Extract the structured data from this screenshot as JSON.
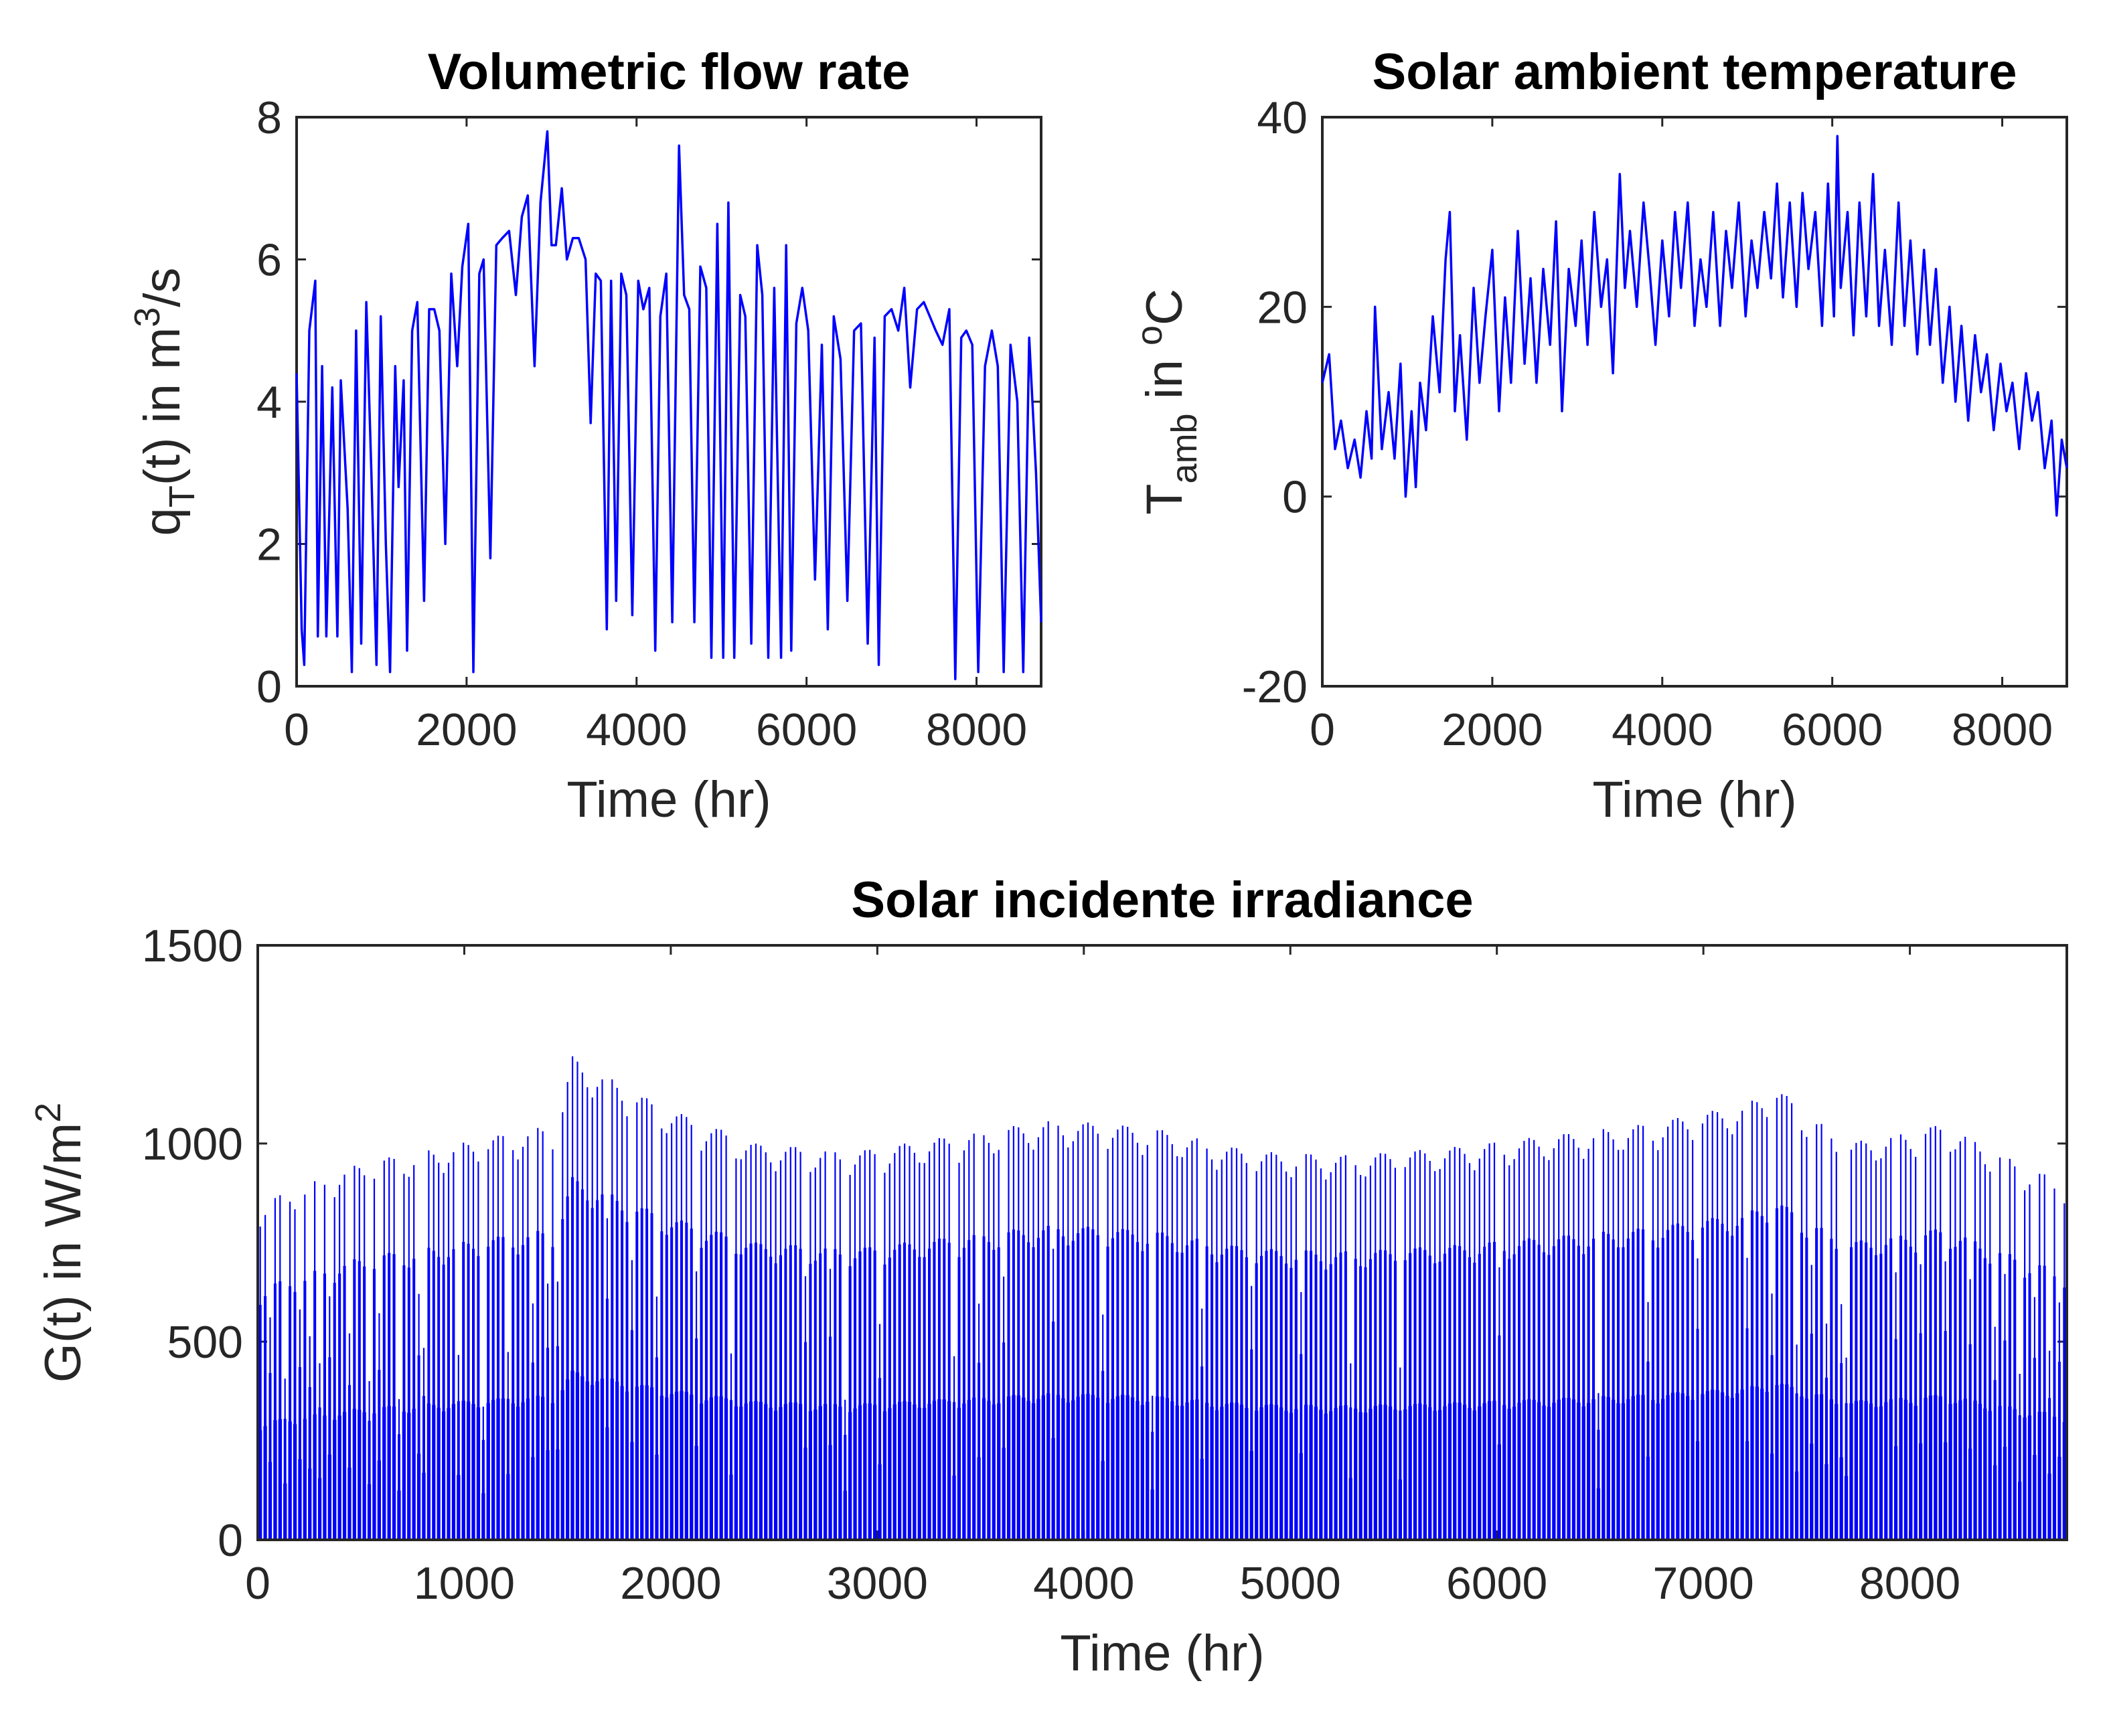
{
  "figure": {
    "background": "#ffffff",
    "line_color": "#0000ff",
    "axis_color": "#262626"
  },
  "chart_data": [
    {
      "id": "flow",
      "type": "line",
      "title": "Volumetric flow rate",
      "xlabel": "Time (hr)",
      "ylabel": {
        "base": "q",
        "sub": "T",
        "rest": "(t) in m",
        "sup": "3",
        "tail": "/s"
      },
      "xlim": [
        0,
        8760
      ],
      "ylim": [
        0,
        8
      ],
      "xticks": [
        0,
        2000,
        4000,
        6000,
        8000
      ],
      "yticks": [
        0,
        2,
        4,
        6,
        8
      ],
      "series": [
        {
          "name": "q_T(t)",
          "x": [
            0,
            60,
            90,
            150,
            220,
            250,
            300,
            350,
            420,
            480,
            520,
            600,
            650,
            700,
            760,
            820,
            880,
            940,
            990,
            1050,
            1100,
            1160,
            1200,
            1260,
            1300,
            1360,
            1420,
            1500,
            1560,
            1620,
            1680,
            1750,
            1820,
            1890,
            1950,
            2020,
            2080,
            2150,
            2200,
            2280,
            2350,
            2420,
            2500,
            2580,
            2650,
            2720,
            2800,
            2870,
            2950,
            3000,
            3050,
            3120,
            3180,
            3250,
            3320,
            3400,
            3460,
            3520,
            3580,
            3650,
            3700,
            3760,
            3820,
            3880,
            3950,
            4020,
            4080,
            4150,
            4220,
            4280,
            4350,
            4420,
            4500,
            4560,
            4620,
            4680,
            4750,
            4820,
            4880,
            4950,
            5020,
            5080,
            5150,
            5220,
            5280,
            5350,
            5420,
            5480,
            5550,
            5620,
            5700,
            5760,
            5820,
            5880,
            5950,
            6020,
            6100,
            6180,
            6250,
            6320,
            6400,
            6480,
            6560,
            6640,
            6720,
            6800,
            6850,
            6920,
            7000,
            7080,
            7150,
            7220,
            7300,
            7380,
            7450,
            7520,
            7600,
            7680,
            7750,
            7820,
            7880,
            7950,
            8020,
            8100,
            8180,
            8250,
            8320,
            8400,
            8480,
            8550,
            8620,
            8700,
            8760
          ],
          "y": [
            4.4,
            0.8,
            0.3,
            5.0,
            5.7,
            0.7,
            4.5,
            0.7,
            4.2,
            0.7,
            4.3,
            2.5,
            0.2,
            5.0,
            0.6,
            5.4,
            3.0,
            0.3,
            5.2,
            2.0,
            0.2,
            4.5,
            2.8,
            4.3,
            0.5,
            5.0,
            5.4,
            1.2,
            5.3,
            5.3,
            5.0,
            2.0,
            5.8,
            4.5,
            5.9,
            6.5,
            0.2,
            5.8,
            6.0,
            1.8,
            6.2,
            6.3,
            6.4,
            5.5,
            6.6,
            6.9,
            4.5,
            6.8,
            7.8,
            6.2,
            6.2,
            7.0,
            6.0,
            6.3,
            6.3,
            6.0,
            3.7,
            5.8,
            5.7,
            0.8,
            5.7,
            1.2,
            5.8,
            5.5,
            1.0,
            5.7,
            5.3,
            5.6,
            0.5,
            5.2,
            5.8,
            0.9,
            7.6,
            5.5,
            5.3,
            0.9,
            5.9,
            5.6,
            0.4,
            6.5,
            0.4,
            6.8,
            0.4,
            5.5,
            5.2,
            0.6,
            6.2,
            5.5,
            0.4,
            5.6,
            0.4,
            6.2,
            0.5,
            5.1,
            5.6,
            5.0,
            1.5,
            4.8,
            0.8,
            5.2,
            4.6,
            1.2,
            5.0,
            5.1,
            0.6,
            4.9,
            0.3,
            5.2,
            5.3,
            5.0,
            5.6,
            4.2,
            5.3,
            5.4,
            5.2,
            5.0,
            4.8,
            5.3,
            0.1,
            4.9,
            5.0,
            4.8,
            0.2,
            4.5,
            5.0,
            4.5,
            0.2,
            4.8,
            4.0,
            0.2,
            4.9,
            3.0,
            0.9
          ]
        }
      ]
    },
    {
      "id": "temp",
      "type": "line",
      "title": "Solar ambient temperature",
      "xlabel": "Time (hr)",
      "ylabel": {
        "base": "T",
        "sub": "amb",
        "rest": " in ",
        "sup": "o",
        "tail": "C"
      },
      "xlim": [
        0,
        8760
      ],
      "ylim": [
        -20,
        40
      ],
      "xticks": [
        0,
        2000,
        4000,
        6000,
        8000
      ],
      "yticks": [
        -20,
        0,
        20,
        40
      ],
      "series": [
        {
          "name": "T_amb",
          "x": [
            0,
            80,
            150,
            220,
            300,
            380,
            450,
            520,
            580,
            620,
            700,
            780,
            850,
            920,
            980,
            1050,
            1100,
            1150,
            1220,
            1300,
            1380,
            1450,
            1500,
            1560,
            1620,
            1700,
            1780,
            1850,
            1920,
            2000,
            2080,
            2150,
            2220,
            2300,
            2380,
            2450,
            2520,
            2600,
            2680,
            2750,
            2820,
            2900,
            2980,
            3050,
            3120,
            3200,
            3280,
            3350,
            3420,
            3500,
            3560,
            3620,
            3700,
            3780,
            3850,
            3920,
            4000,
            4080,
            4150,
            4220,
            4300,
            4380,
            4450,
            4520,
            4600,
            4680,
            4750,
            4820,
            4900,
            4980,
            5050,
            5120,
            5200,
            5280,
            5350,
            5420,
            5500,
            5580,
            5650,
            5720,
            5800,
            5880,
            5950,
            6020,
            6060,
            6100,
            6180,
            6250,
            6320,
            6400,
            6480,
            6550,
            6620,
            6700,
            6780,
            6850,
            6920,
            7000,
            7080,
            7150,
            7220,
            7300,
            7380,
            7450,
            7520,
            7600,
            7680,
            7750,
            7820,
            7900,
            7980,
            8050,
            8120,
            8200,
            8280,
            8350,
            8420,
            8500,
            8580,
            8640,
            8700,
            8760
          ],
          "y": [
            12,
            15,
            5,
            8,
            3,
            6,
            2,
            9,
            4,
            20,
            5,
            11,
            4,
            14,
            0,
            9,
            1,
            12,
            7,
            19,
            11,
            25,
            30,
            9,
            17,
            6,
            22,
            12,
            19,
            26,
            9,
            21,
            12,
            28,
            14,
            23,
            12,
            24,
            16,
            29,
            9,
            24,
            18,
            27,
            16,
            30,
            20,
            25,
            13,
            34,
            22,
            28,
            20,
            31,
            24,
            16,
            27,
            19,
            30,
            22,
            31,
            18,
            25,
            20,
            30,
            18,
            28,
            22,
            31,
            19,
            27,
            22,
            30,
            23,
            33,
            21,
            31,
            20,
            32,
            24,
            30,
            18,
            33,
            19,
            38,
            22,
            30,
            17,
            31,
            19,
            34,
            18,
            26,
            16,
            31,
            18,
            27,
            15,
            26,
            16,
            24,
            12,
            20,
            10,
            18,
            8,
            17,
            11,
            15,
            7,
            14,
            9,
            12,
            5,
            13,
            8,
            11,
            3,
            8,
            -2,
            6,
            3
          ]
        }
      ]
    },
    {
      "id": "irradiance",
      "type": "bar",
      "title": "Solar incidente irradiance",
      "xlabel": "Time (hr)",
      "ylabel": {
        "base": "G(t) in W/m",
        "sup": "2"
      },
      "xlim": [
        0,
        8760
      ],
      "ylim": [
        0,
        1500
      ],
      "xticks": [
        0,
        1000,
        2000,
        3000,
        4000,
        5000,
        6000,
        7000,
        8000
      ],
      "yticks": [
        0,
        500,
        1000,
        1500
      ],
      "description": "Hourly irradiance over one year, one peak per day (365 days)",
      "peak_envelope": {
        "day": [
          0,
          20,
          40,
          60,
          63,
          80,
          100,
          120,
          140,
          160,
          180,
          200,
          220,
          240,
          260,
          280,
          300,
          305,
          320,
          340,
          355,
          364
        ],
        "peak": [
          850,
          950,
          1000,
          1050,
          1220,
          1100,
          1000,
          980,
          1020,
          1060,
          1040,
          980,
          970,
          990,
          1020,
          1050,
          1100,
          1150,
          1000,
          1050,
          950,
          900
        ]
      },
      "cloudy_days": [
        2,
        5,
        8,
        10,
        12,
        14,
        18,
        22,
        24,
        28,
        32,
        33,
        40,
        45,
        50,
        55,
        58,
        60,
        70,
        75,
        80,
        88,
        95,
        110,
        115,
        118,
        125,
        140,
        145,
        150,
        160,
        170,
        180,
        190,
        200,
        210,
        220,
        230,
        250,
        270,
        280,
        290,
        300,
        305,
        310,
        313,
        316,
        319,
        320,
        330,
        335,
        340,
        345,
        350,
        352,
        355,
        358,
        361,
        363
      ]
    }
  ]
}
